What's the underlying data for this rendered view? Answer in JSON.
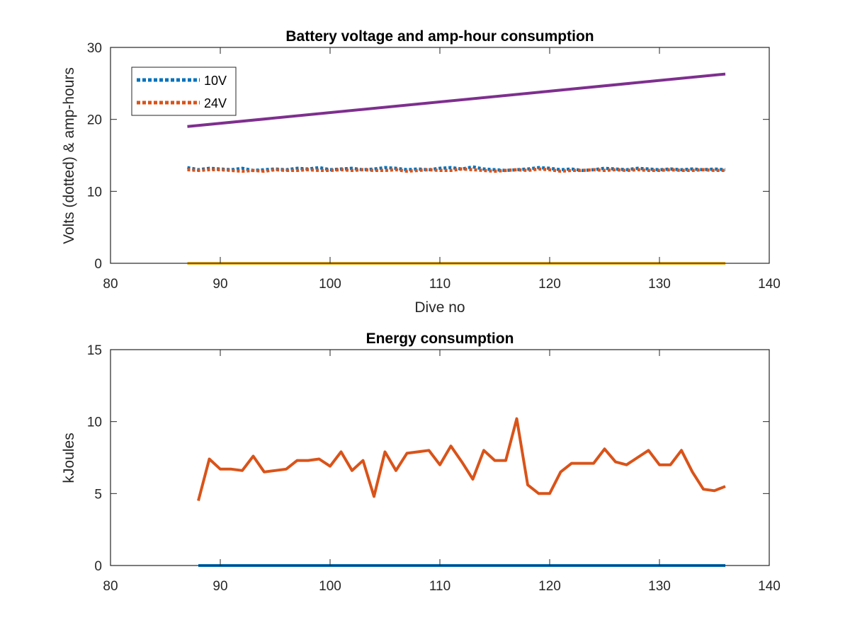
{
  "chart_data": [
    {
      "type": "line",
      "title": "Battery voltage and amp-hour consumption",
      "xlabel": "Dive no",
      "ylabel": "Volts (dotted) & amp-hours",
      "xlim": [
        80,
        140
      ],
      "ylim": [
        0,
        30
      ],
      "xticks": [
        80,
        90,
        100,
        110,
        120,
        130,
        140
      ],
      "yticks": [
        0,
        10,
        20,
        30
      ],
      "grid": false,
      "legend": {
        "position": "top-left",
        "entries": [
          "10V",
          "24V"
        ]
      },
      "series": [
        {
          "name": "10V",
          "color": "#0072BD",
          "style": "dotted",
          "x": [
            87,
            88,
            89,
            90,
            91,
            92,
            93,
            94,
            95,
            96,
            97,
            98,
            99,
            100,
            101,
            102,
            103,
            104,
            105,
            106,
            107,
            108,
            109,
            110,
            111,
            112,
            113,
            114,
            115,
            116,
            117,
            118,
            119,
            120,
            121,
            122,
            123,
            124,
            125,
            126,
            127,
            128,
            129,
            130,
            131,
            132,
            133,
            134,
            135,
            136
          ],
          "y": [
            13.3,
            13.0,
            13.2,
            13.1,
            13.0,
            13.2,
            12.9,
            13.0,
            13.1,
            13.0,
            13.2,
            13.1,
            13.3,
            13.0,
            13.1,
            13.2,
            13.0,
            13.1,
            13.3,
            13.2,
            13.0,
            13.1,
            13.0,
            13.2,
            13.3,
            13.1,
            13.4,
            13.1,
            13.0,
            12.9,
            13.0,
            13.1,
            13.3,
            13.2,
            13.0,
            13.1,
            12.9,
            13.0,
            13.2,
            13.1,
            13.0,
            13.2,
            13.1,
            13.0,
            13.1,
            13.0,
            13.1,
            13.0,
            13.1,
            13.0
          ]
        },
        {
          "name": "24V",
          "color": "#D95319",
          "style": "dotted",
          "x": [
            87,
            88,
            89,
            90,
            91,
            92,
            93,
            94,
            95,
            96,
            97,
            98,
            99,
            100,
            101,
            102,
            103,
            104,
            105,
            106,
            107,
            108,
            109,
            110,
            111,
            112,
            113,
            114,
            115,
            116,
            117,
            118,
            119,
            120,
            121,
            122,
            123,
            124,
            125,
            126,
            127,
            128,
            129,
            130,
            131,
            132,
            133,
            134,
            135,
            136
          ],
          "y": [
            13.0,
            12.9,
            13.0,
            13.0,
            12.9,
            12.8,
            12.9,
            12.8,
            13.0,
            12.9,
            12.9,
            13.0,
            12.9,
            12.9,
            13.0,
            12.9,
            13.0,
            12.9,
            12.9,
            13.0,
            12.8,
            12.9,
            13.0,
            12.9,
            12.9,
            13.1,
            13.0,
            12.9,
            12.8,
            12.9,
            13.0,
            12.9,
            13.1,
            13.0,
            12.8,
            12.9,
            12.9,
            13.0,
            12.9,
            13.0,
            12.9,
            13.0,
            12.9,
            12.9,
            13.0,
            12.9,
            12.9,
            13.0,
            12.9,
            12.9
          ]
        },
        {
          "color": "#7E2F8E",
          "style": "solid",
          "x": [
            87,
            136
          ],
          "y": [
            19.0,
            26.3
          ]
        },
        {
          "color": "#EDB120",
          "style": "solid",
          "x": [
            87,
            136
          ],
          "y": [
            0,
            0
          ]
        }
      ]
    },
    {
      "type": "line",
      "title": "Energy consumption",
      "xlabel": "",
      "ylabel": "kJoules",
      "xlim": [
        80,
        140
      ],
      "ylim": [
        0,
        15
      ],
      "xticks": [
        80,
        90,
        100,
        110,
        120,
        130,
        140
      ],
      "yticks": [
        0,
        5,
        10,
        15
      ],
      "grid": false,
      "series": [
        {
          "color": "#D95319",
          "style": "solid",
          "x": [
            88,
            89,
            90,
            91,
            92,
            93,
            94,
            95,
            96,
            97,
            98,
            99,
            100,
            101,
            102,
            103,
            104,
            105,
            106,
            107,
            108,
            109,
            110,
            111,
            112,
            113,
            114,
            115,
            116,
            117,
            118,
            119,
            120,
            121,
            122,
            123,
            124,
            125,
            126,
            127,
            128,
            129,
            130,
            131,
            132,
            133,
            134,
            135,
            136
          ],
          "y": [
            4.5,
            7.4,
            6.7,
            6.7,
            6.6,
            7.6,
            6.5,
            6.6,
            6.7,
            7.3,
            7.3,
            7.4,
            6.9,
            7.9,
            6.6,
            7.3,
            4.8,
            7.9,
            6.6,
            7.8,
            7.9,
            8.0,
            7.0,
            8.3,
            7.2,
            6.0,
            8.0,
            7.3,
            7.3,
            10.2,
            5.6,
            5.0,
            5.0,
            6.5,
            7.1,
            7.1,
            7.1,
            8.1,
            7.2,
            7.0,
            7.5,
            8.0,
            7.0,
            7.0,
            8.0,
            6.5,
            5.3,
            5.2,
            5.5
          ]
        },
        {
          "color": "#0072BD",
          "style": "solid",
          "x": [
            88,
            136
          ],
          "y": [
            0,
            0
          ]
        }
      ]
    }
  ]
}
